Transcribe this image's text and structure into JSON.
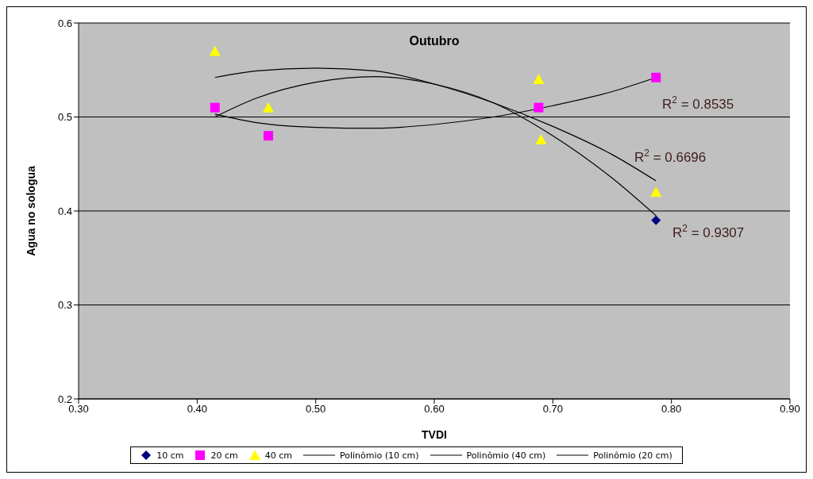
{
  "chart_data": {
    "type": "scatter",
    "title": "Outubro",
    "xlabel": "TVDI",
    "ylabel": "Agua no sologua",
    "xlim": [
      0.3,
      0.9
    ],
    "xticks": [
      {
        "value": 0.3,
        "label": "0.30"
      },
      {
        "value": 0.4,
        "label": "0.40"
      },
      {
        "value": 0.5,
        "label": "0.50"
      },
      {
        "value": 0.6,
        "label": "0.60"
      },
      {
        "value": 0.7,
        "label": "0.70"
      },
      {
        "value": 0.8,
        "label": "0.80"
      },
      {
        "value": 0.9,
        "label": "0.90"
      }
    ],
    "ylim": [
      0.2,
      0.6
    ],
    "yticks": [
      0.2,
      0.3,
      0.4,
      0.5,
      0.6
    ],
    "grid": "y",
    "legend": "bottom",
    "series": [
      {
        "name": "10 cm",
        "marker": "diamond",
        "color": "#000080",
        "x": [
          0.787
        ],
        "values": [
          0.39
        ]
      },
      {
        "name": "20 cm",
        "marker": "square",
        "color": "#ff00ff",
        "x": [
          0.415,
          0.46,
          0.688,
          0.787
        ],
        "values": [
          0.51,
          0.48,
          0.51,
          0.542
        ]
      },
      {
        "name": "40 cm",
        "marker": "triangle",
        "color": "#ffff00",
        "x": [
          0.415,
          0.46,
          0.688,
          0.69,
          0.787
        ],
        "values": [
          0.57,
          0.51,
          0.54,
          0.476,
          0.42
        ]
      },
      {
        "name": "Polinômio (10 cm)",
        "type": "line",
        "marker": "none",
        "color": "#000000",
        "x": [
          0.415,
          0.45,
          0.5,
          0.55,
          0.6,
          0.65,
          0.7,
          0.75,
          0.787
        ],
        "values": [
          0.5,
          0.52,
          0.537,
          0.543,
          0.535,
          0.515,
          0.48,
          0.435,
          0.395
        ]
      },
      {
        "name": "Polinômio (40 cm)",
        "type": "line",
        "marker": "none",
        "color": "#000000",
        "x": [
          0.415,
          0.45,
          0.5,
          0.55,
          0.6,
          0.65,
          0.7,
          0.75,
          0.787
        ],
        "values": [
          0.542,
          0.549,
          0.552,
          0.549,
          0.535,
          0.515,
          0.49,
          0.46,
          0.432
        ]
      },
      {
        "name": "Polinômio (20 cm)",
        "type": "line",
        "marker": "none",
        "color": "#000000",
        "x": [
          0.415,
          0.45,
          0.5,
          0.55,
          0.6,
          0.65,
          0.7,
          0.75,
          0.787
        ],
        "values": [
          0.503,
          0.494,
          0.489,
          0.488,
          0.492,
          0.5,
          0.512,
          0.527,
          0.542
        ]
      }
    ],
    "annotations": [
      "R$^{2}$ = 0.8535",
      "R$^{2}$ = 0.6696",
      "R$^{2}$ = 0.9307"
    ]
  }
}
